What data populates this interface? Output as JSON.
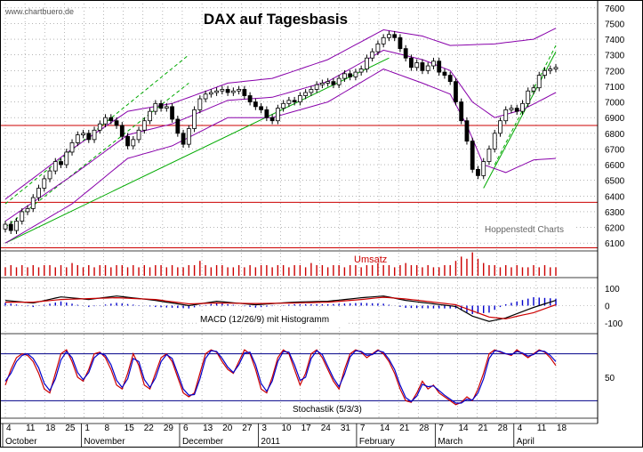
{
  "header": {
    "watermark": "www.chartbuero.de",
    "credit": "Hoppenstedt Charts"
  },
  "chart_data": [
    {
      "type": "candlestick",
      "title": "DAX auf Tagesbasis",
      "ylim": [
        6050,
        7650
      ],
      "y_ticks": [
        6100,
        6200,
        6300,
        6400,
        6500,
        6600,
        6700,
        6800,
        6900,
        7000,
        7100,
        7200,
        7300,
        7400,
        7500,
        7600
      ],
      "horizontal_lines": [
        6850,
        6360,
        6070
      ],
      "close_series": [
        6220,
        6180,
        6240,
        6300,
        6320,
        6390,
        6450,
        6510,
        6560,
        6620,
        6600,
        6680,
        6740,
        6790,
        6800,
        6760,
        6820,
        6860,
        6900,
        6880,
        6850,
        6780,
        6720,
        6760,
        6820,
        6880,
        6940,
        6990,
        6960,
        6970,
        6890,
        6800,
        6730,
        6830,
        6950,
        7020,
        7050,
        7060,
        7070,
        7080,
        7060,
        7070,
        7080,
        7040,
        7000,
        6970,
        6950,
        6900,
        6880,
        6960,
        6990,
        7010,
        7000,
        7040,
        7060,
        7080,
        7110,
        7120,
        7130,
        7110,
        7150,
        7180,
        7160,
        7190,
        7210,
        7280,
        7320,
        7370,
        7410,
        7430,
        7410,
        7340,
        7280,
        7220,
        7250,
        7200,
        7230,
        7260,
        7190,
        7170,
        7130,
        7000,
        6880,
        6750,
        6570,
        6530,
        6620,
        6700,
        6800,
        6880,
        6950,
        6960,
        6940,
        6990,
        7070,
        7090,
        7170,
        7200,
        7210,
        7220
      ],
      "bollinger_upper_anchors": [
        [
          0,
          6380
        ],
        [
          12,
          6700
        ],
        [
          22,
          6940
        ],
        [
          30,
          6990
        ],
        [
          40,
          7120
        ],
        [
          48,
          7150
        ],
        [
          58,
          7270
        ],
        [
          68,
          7460
        ],
        [
          75,
          7420
        ],
        [
          80,
          7360
        ],
        [
          88,
          7370
        ],
        [
          95,
          7400
        ],
        [
          99,
          7470
        ]
      ],
      "bollinger_lower_anchors": [
        [
          0,
          6100
        ],
        [
          12,
          6350
        ],
        [
          22,
          6640
        ],
        [
          30,
          6720
        ],
        [
          40,
          6900
        ],
        [
          48,
          6900
        ],
        [
          58,
          7000
        ],
        [
          68,
          7210
        ],
        [
          75,
          7120
        ],
        [
          80,
          7050
        ],
        [
          83,
          6850
        ],
        [
          86,
          6600
        ],
        [
          90,
          6550
        ],
        [
          95,
          6630
        ],
        [
          99,
          6640
        ]
      ],
      "bollinger_middle_anchors": [
        [
          0,
          6240
        ],
        [
          12,
          6530
        ],
        [
          22,
          6790
        ],
        [
          30,
          6860
        ],
        [
          40,
          7010
        ],
        [
          48,
          7030
        ],
        [
          58,
          7130
        ],
        [
          68,
          7330
        ],
        [
          75,
          7270
        ],
        [
          80,
          7200
        ],
        [
          84,
          7000
        ],
        [
          88,
          6900
        ],
        [
          93,
          6950
        ],
        [
          99,
          7060
        ]
      ],
      "trendlines": [
        {
          "style": "dashed",
          "from": [
            0,
            6350
          ],
          "to": [
            33,
            7300
          ]
        },
        {
          "style": "dashed",
          "from": [
            0,
            6200
          ],
          "to": [
            33,
            7120
          ]
        },
        {
          "style": "solid",
          "from": [
            0,
            6100
          ],
          "to": [
            69,
            7280
          ]
        },
        {
          "style": "solid",
          "from": [
            86,
            6450
          ],
          "to": [
            99,
            7320
          ]
        },
        {
          "style": "dashed",
          "from": [
            88,
            6600
          ],
          "to": [
            99,
            7360
          ]
        }
      ]
    },
    {
      "type": "bar",
      "label": "Umsatz",
      "values": [
        4,
        5,
        4,
        5,
        4,
        5,
        4,
        5,
        5,
        4,
        5,
        4,
        6,
        5,
        4,
        5,
        4,
        5,
        5,
        4,
        5,
        5,
        4,
        5,
        4,
        5,
        4,
        5,
        5,
        4,
        5,
        4,
        4,
        5,
        5,
        7,
        5,
        4,
        5,
        5,
        4,
        4,
        5,
        4,
        5,
        4,
        5,
        5,
        4,
        5,
        5,
        4,
        5,
        5,
        4,
        6,
        5,
        5,
        4,
        5,
        5,
        4,
        5,
        5,
        4,
        5,
        5,
        6,
        5,
        5,
        4,
        5,
        6,
        5,
        5,
        4,
        5,
        4,
        4,
        5,
        5,
        7,
        9,
        8,
        11,
        8,
        6,
        5,
        5,
        4,
        5,
        4,
        5,
        4,
        4,
        5,
        4,
        5,
        4,
        4
      ]
    },
    {
      "type": "line",
      "label": "MACD (12/26/9) mit Histogramm",
      "y_ticks": [
        100,
        0,
        -100
      ],
      "ylim": [
        -160,
        160
      ],
      "macd_anchors": [
        [
          0,
          30
        ],
        [
          5,
          15
        ],
        [
          10,
          50
        ],
        [
          15,
          35
        ],
        [
          20,
          55
        ],
        [
          27,
          30
        ],
        [
          33,
          0
        ],
        [
          38,
          25
        ],
        [
          45,
          5
        ],
        [
          52,
          20
        ],
        [
          58,
          25
        ],
        [
          64,
          45
        ],
        [
          68,
          55
        ],
        [
          72,
          30
        ],
        [
          77,
          10
        ],
        [
          81,
          -5
        ],
        [
          84,
          -60
        ],
        [
          87,
          -90
        ],
        [
          90,
          -70
        ],
        [
          95,
          -10
        ],
        [
          99,
          30
        ]
      ],
      "signal_anchors": [
        [
          0,
          20
        ],
        [
          5,
          20
        ],
        [
          10,
          35
        ],
        [
          15,
          40
        ],
        [
          20,
          45
        ],
        [
          27,
          35
        ],
        [
          33,
          10
        ],
        [
          38,
          15
        ],
        [
          45,
          12
        ],
        [
          52,
          15
        ],
        [
          58,
          20
        ],
        [
          64,
          35
        ],
        [
          68,
          48
        ],
        [
          72,
          38
        ],
        [
          77,
          20
        ],
        [
          81,
          5
        ],
        [
          84,
          -30
        ],
        [
          87,
          -65
        ],
        [
          90,
          -75
        ],
        [
          95,
          -40
        ],
        [
          99,
          5
        ]
      ]
    },
    {
      "type": "line",
      "label": "Stochastik (5/3/3)",
      "y_ticks": [
        50
      ],
      "ylim": [
        0,
        100
      ],
      "levels": [
        80,
        20
      ],
      "series": [
        {
          "color": "#cc0000",
          "values": [
            40,
            60,
            75,
            80,
            78,
            70,
            55,
            35,
            30,
            55,
            80,
            85,
            70,
            50,
            45,
            60,
            80,
            82,
            75,
            60,
            40,
            35,
            55,
            80,
            65,
            40,
            35,
            55,
            75,
            80,
            70,
            50,
            30,
            25,
            30,
            55,
            80,
            85,
            82,
            70,
            60,
            55,
            70,
            85,
            80,
            60,
            35,
            30,
            50,
            75,
            85,
            80,
            60,
            40,
            55,
            80,
            85,
            75,
            60,
            45,
            35,
            60,
            80,
            85,
            82,
            75,
            80,
            85,
            80,
            70,
            55,
            35,
            20,
            18,
            30,
            45,
            35,
            40,
            30,
            25,
            20,
            15,
            18,
            25,
            20,
            35,
            55,
            80,
            85,
            82,
            80,
            78,
            85,
            80,
            75,
            80,
            85,
            82,
            75,
            65
          ]
        },
        {
          "color": "#0000cc",
          "values": [
            45,
            55,
            70,
            78,
            80,
            74,
            62,
            42,
            33,
            48,
            72,
            83,
            75,
            56,
            47,
            56,
            75,
            81,
            78,
            66,
            46,
            37,
            48,
            74,
            70,
            47,
            37,
            49,
            70,
            79,
            74,
            55,
            35,
            27,
            28,
            48,
            74,
            84,
            83,
            74,
            63,
            56,
            66,
            81,
            82,
            66,
            42,
            32,
            45,
            70,
            83,
            82,
            66,
            46,
            50,
            74,
            84,
            79,
            64,
            49,
            38,
            54,
            76,
            84,
            83,
            78,
            79,
            84,
            82,
            73,
            60,
            40,
            24,
            19,
            26,
            41,
            38,
            39,
            33,
            27,
            22,
            17,
            17,
            22,
            21,
            30,
            48,
            74,
            84,
            83,
            80,
            79,
            83,
            81,
            77,
            79,
            84,
            83,
            78,
            70
          ]
        }
      ]
    }
  ],
  "x_axis": {
    "day_labels": [
      "4",
      "11",
      "18",
      "25",
      "1",
      "8",
      "15",
      "22",
      "29",
      "6",
      "13",
      "20",
      "27",
      "3",
      "10",
      "17",
      "24",
      "31",
      "7",
      "14",
      "21",
      "28",
      "7",
      "14",
      "21",
      "28",
      "4",
      "11",
      "18"
    ],
    "month_labels": [
      "October",
      "November",
      "December",
      "2011",
      "February",
      "March",
      "April"
    ]
  },
  "colors": {
    "candle": "#000000",
    "bollinger": "#8800aa",
    "trendline": "#00aa00",
    "support": "#cc0000",
    "volume": "#cc0000",
    "macd": "#000000",
    "signal": "#cc0000",
    "histogram": "#0000cc",
    "stoch_level": "#000088",
    "grid": "#888888"
  }
}
